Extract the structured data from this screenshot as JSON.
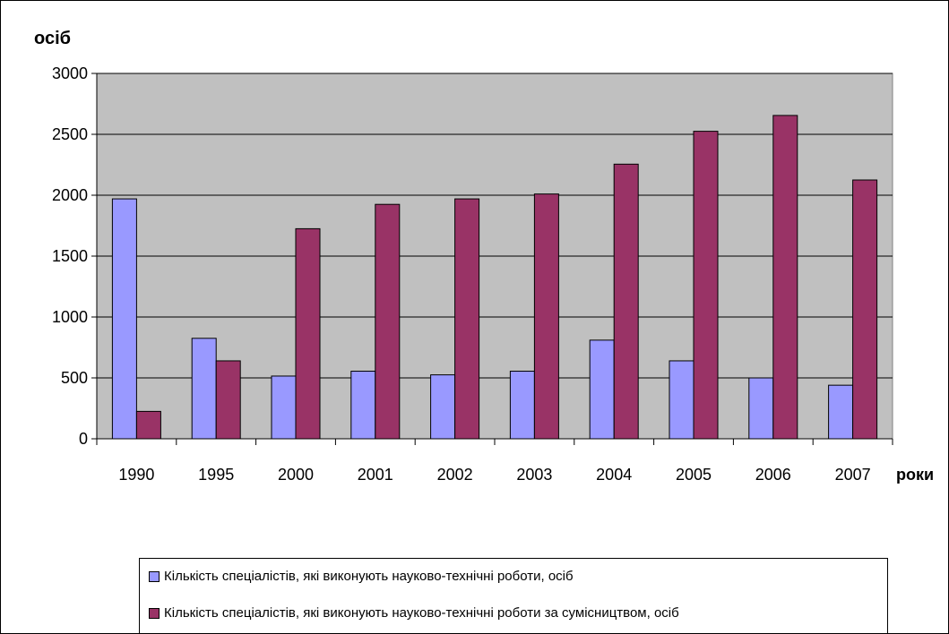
{
  "chart_data": {
    "type": "bar",
    "ylabel": "осіб",
    "xlabel": "роки",
    "categories": [
      "1990",
      "1995",
      "2000",
      "2001",
      "2002",
      "2003",
      "2004",
      "2005",
      "2006",
      "2007"
    ],
    "ylim": [
      0,
      3000
    ],
    "yticks": [
      0,
      500,
      1000,
      1500,
      2000,
      2500,
      3000
    ],
    "grid": true,
    "legend_position": "bottom",
    "plot_background": "#c0c0c0",
    "series": [
      {
        "name": "Кількість спеціалістів, які виконують науково-технічні роботи, осіб",
        "color": "#9999ff",
        "values": [
          1970,
          825,
          515,
          555,
          525,
          555,
          810,
          640,
          500,
          440
        ]
      },
      {
        "name": "Кількість спеціалістів, які виконують науково-технічні роботи за сумісництвом, осіб",
        "color": "#993366",
        "values": [
          225,
          640,
          1725,
          1925,
          1970,
          2010,
          2255,
          2525,
          2655,
          2125
        ]
      }
    ]
  }
}
